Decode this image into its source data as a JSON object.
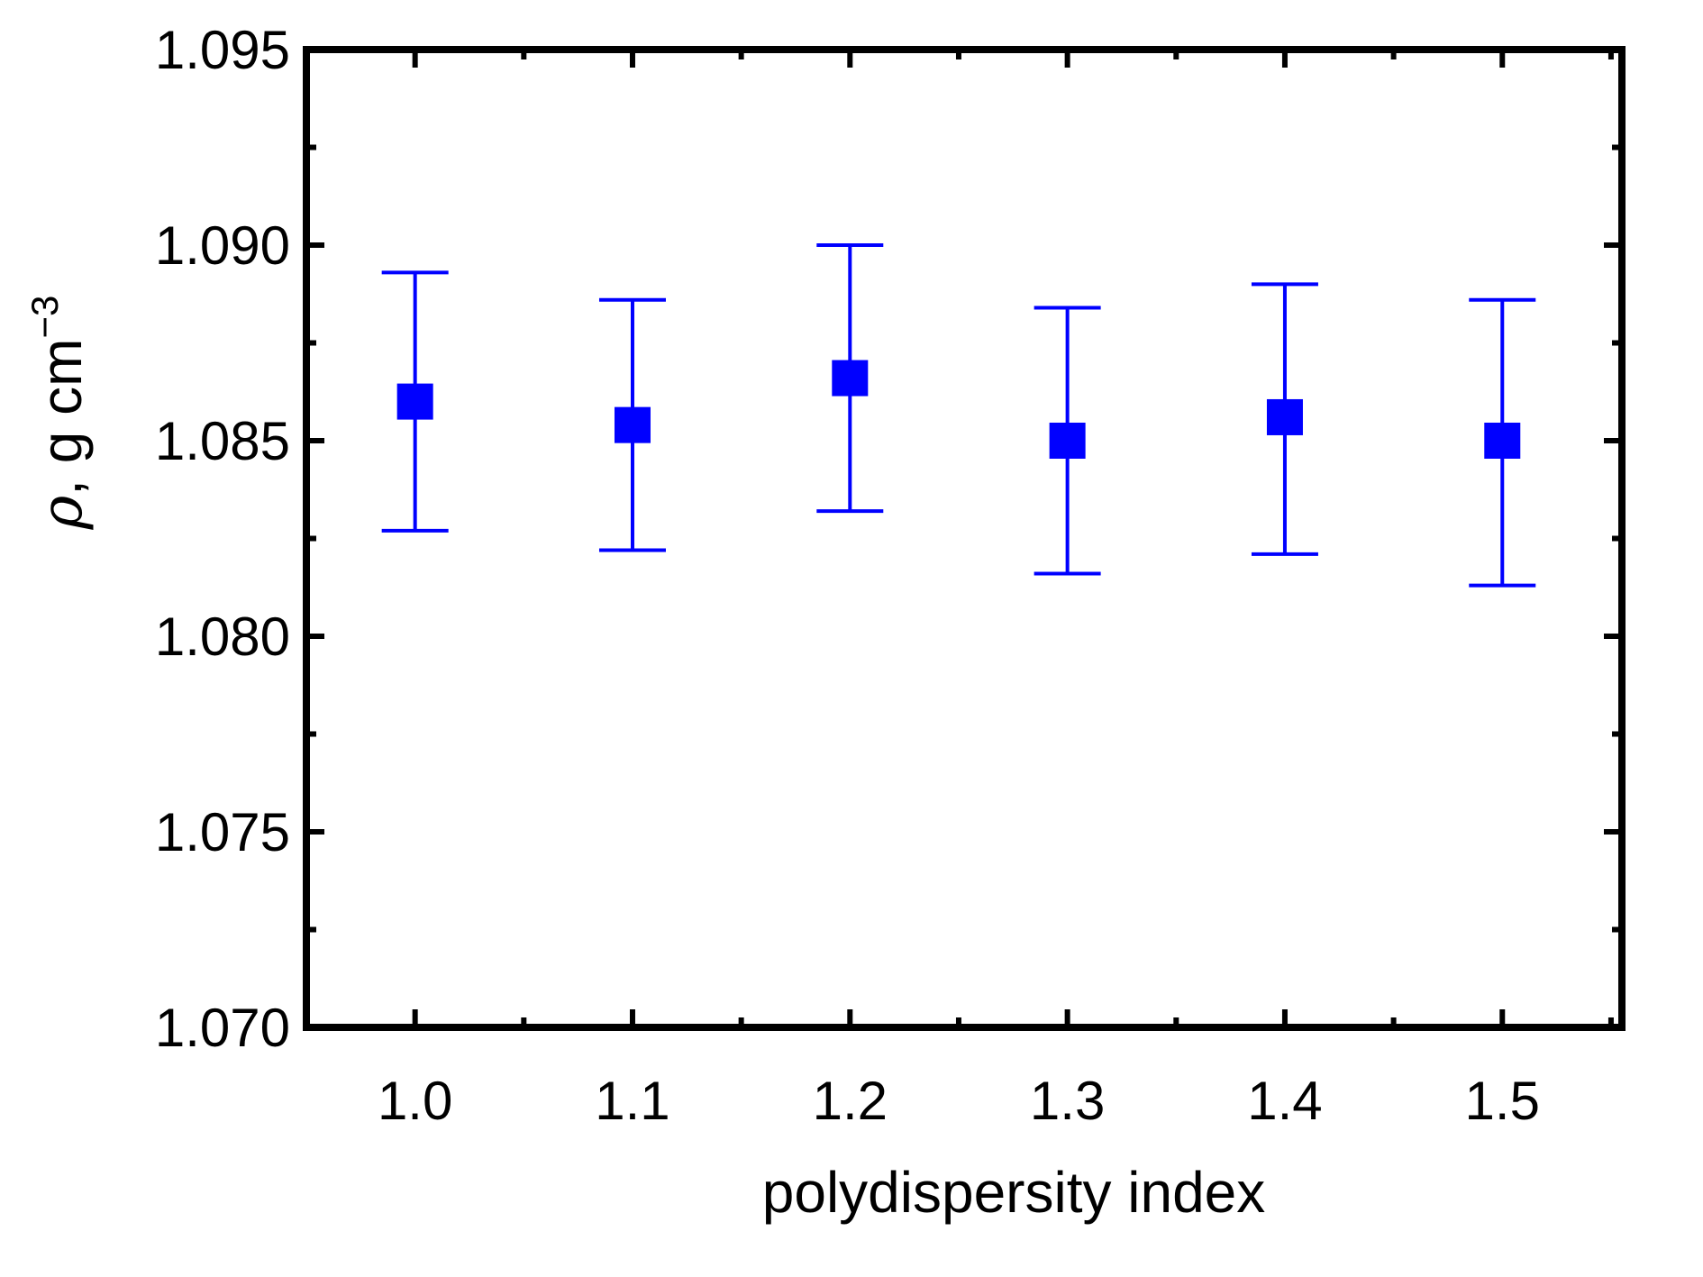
{
  "chart_data": {
    "type": "scatter",
    "title": "",
    "xlabel": "polydispersity index",
    "ylabel": {
      "symbol": "ρ",
      "text": ", g cm",
      "exponent": "−3"
    },
    "xlim": [
      0.95,
      1.555
    ],
    "ylim": [
      1.07,
      1.095
    ],
    "xticks": [
      1.0,
      1.1,
      1.2,
      1.3,
      1.4,
      1.5
    ],
    "xtick_labels": [
      "1.0",
      "1.1",
      "1.2",
      "1.3",
      "1.4",
      "1.5"
    ],
    "yticks": [
      1.07,
      1.075,
      1.08,
      1.085,
      1.09,
      1.095
    ],
    "ytick_labels": [
      "1.070",
      "1.075",
      "1.080",
      "1.085",
      "1.090",
      "1.095"
    ],
    "grid": false,
    "series": [
      {
        "marker": "filled-square",
        "color": "#0000ff",
        "x": [
          1.0,
          1.1,
          1.2,
          1.3,
          1.4,
          1.5
        ],
        "y": [
          1.086,
          1.0854,
          1.0866,
          1.085,
          1.0856,
          1.085
        ],
        "error_low": [
          1.0827,
          1.0822,
          1.0832,
          1.0816,
          1.0821,
          1.0813
        ],
        "error_high": [
          1.0893,
          1.0886,
          1.09,
          1.0884,
          1.089,
          1.0886
        ]
      }
    ]
  }
}
